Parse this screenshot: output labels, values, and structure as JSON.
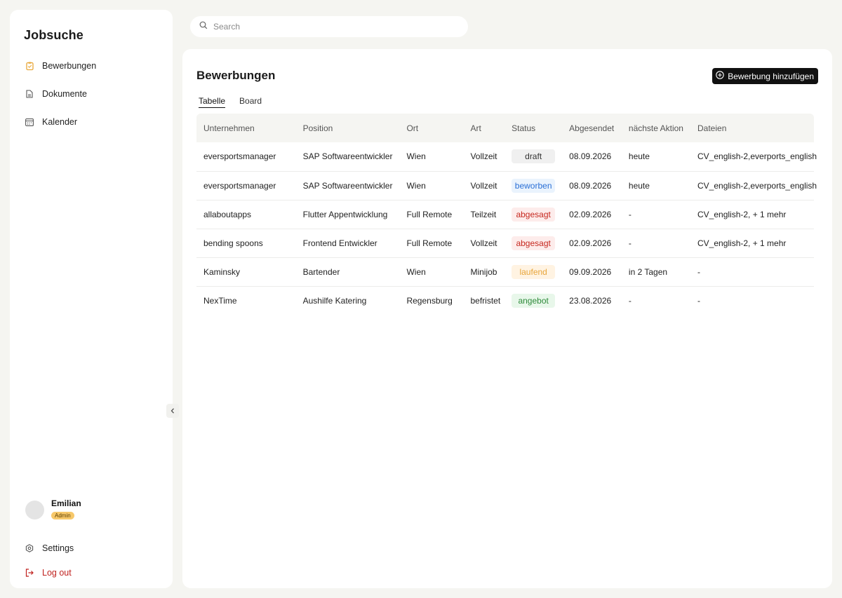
{
  "app": {
    "title": "Jobsuche"
  },
  "sidebar": {
    "items": [
      {
        "label": "Bewerbungen",
        "icon": "clipboard-icon",
        "active": true
      },
      {
        "label": "Dokumente",
        "icon": "document-icon",
        "active": false
      },
      {
        "label": "Kalender",
        "icon": "calendar-icon",
        "active": false
      }
    ],
    "user": {
      "name": "Emilian",
      "role": "Admin"
    },
    "settings_label": "Settings",
    "logout_label": "Log out"
  },
  "search": {
    "placeholder": "Search",
    "value": ""
  },
  "main": {
    "title": "Bewerbungen",
    "add_button_label": "Bewerbung hinzufügen",
    "tabs": [
      {
        "label": "Tabelle",
        "active": true
      },
      {
        "label": "Board",
        "active": false
      }
    ]
  },
  "table": {
    "columns": [
      "Unternehmen",
      "Position",
      "Ort",
      "Art",
      "Status",
      "Abgesendet",
      "nächste Aktion",
      "Dateien"
    ],
    "rows": [
      [
        "eversportsmanager",
        "SAP Softwareentwickler",
        "Wien",
        "Vollzeit",
        "draft",
        "08.09.2026",
        "heute",
        "CV_english-2,everports_english"
      ],
      [
        "eversportsmanager",
        "SAP Softwareentwickler",
        "Wien",
        "Vollzeit",
        "beworben",
        "08.09.2026",
        "heute",
        "CV_english-2,everports_english"
      ],
      [
        "allaboutapps",
        "Flutter Appentwicklung",
        "Full Remote",
        "Teilzeit",
        "abgesagt",
        "02.09.2026",
        "-",
        "CV_english-2, + 1 mehr"
      ],
      [
        "bending spoons",
        "Frontend Entwickler",
        "Full Remote",
        "Vollzeit",
        "abgesagt",
        "02.09.2026",
        "-",
        "CV_english-2, + 1 mehr"
      ],
      [
        "Kaminsky",
        "Bartender",
        "Wien",
        "Minijob",
        "laufend",
        "09.09.2026",
        "in 2 Tagen",
        "-"
      ],
      [
        "NexTime",
        "Aushilfe Katering",
        "Regensburg",
        "befristet",
        "angebot",
        "23.08.2026",
        "-",
        "-"
      ]
    ]
  },
  "status_colors": {
    "draft": {
      "bg": "#f0f0f0",
      "fg": "#333333"
    },
    "beworben": {
      "bg": "#eaf3fd",
      "fg": "#2a6fd6"
    },
    "abgesagt": {
      "bg": "#fdeceb",
      "fg": "#c6281f"
    },
    "laufend": {
      "bg": "#fff3e2",
      "fg": "#e8a53a"
    },
    "angebot": {
      "bg": "#e8f7ea",
      "fg": "#2e8a3a"
    }
  },
  "colors": {
    "accent": "#e9a83a",
    "danger": "#c0221f",
    "background": "#f5f5f1"
  }
}
